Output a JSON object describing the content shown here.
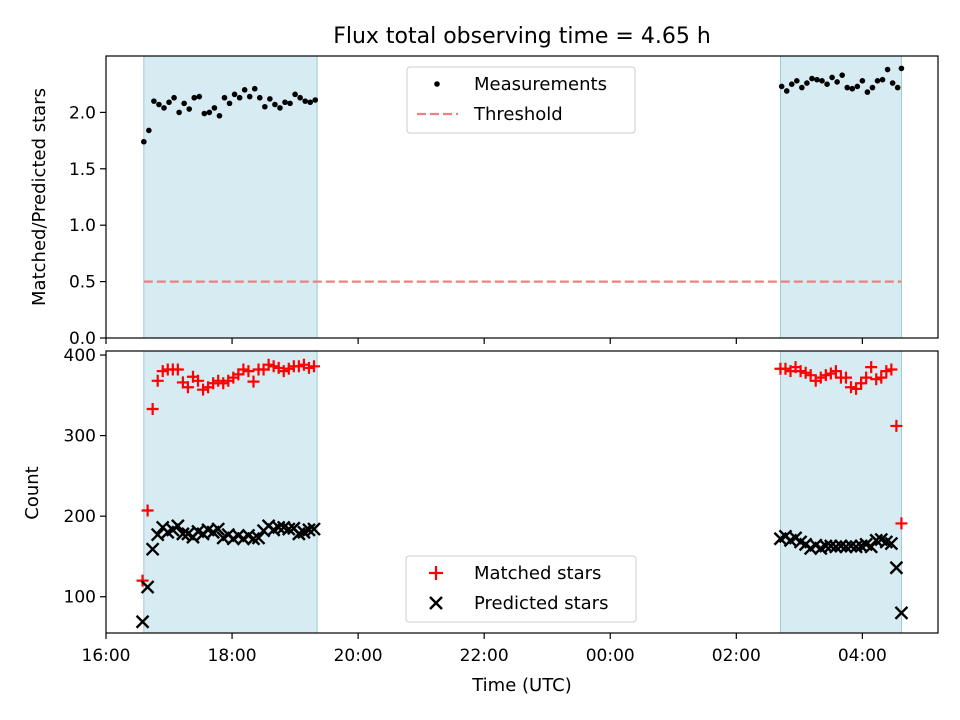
{
  "chart_data": [
    {
      "type": "scatter",
      "title": "Flux total observing time = 4.65 h",
      "xlabel": "",
      "ylabel": "Matched/Predicted stars",
      "xlim": [
        16.0,
        29.2
      ],
      "ylim": [
        0.0,
        2.5
      ],
      "yticks": [
        0.0,
        0.5,
        1.0,
        1.5,
        2.0
      ],
      "ytick_labels": [
        "0.0",
        "0.5",
        "1.0",
        "1.5",
        "2.0"
      ],
      "shaded_spans": [
        [
          16.6,
          19.35
        ],
        [
          26.7,
          28.62
        ]
      ],
      "threshold": 0.5,
      "threshold_x": [
        16.6,
        28.62
      ],
      "legend": {
        "placement": "upper center",
        "entries": [
          "Measurements",
          "Threshold"
        ]
      },
      "series": [
        {
          "name": "Measurements",
          "color": "#000000",
          "marker": "dot",
          "x": [
            16.6,
            16.68,
            16.76,
            16.84,
            16.92,
            17.0,
            17.08,
            17.16,
            17.24,
            17.32,
            17.4,
            17.48,
            17.56,
            17.64,
            17.72,
            17.8,
            17.88,
            17.96,
            18.04,
            18.12,
            18.2,
            18.28,
            18.36,
            18.44,
            18.52,
            18.6,
            18.68,
            18.76,
            18.84,
            18.92,
            19.0,
            19.08,
            19.16,
            19.24,
            19.32,
            26.72,
            26.8,
            26.88,
            26.96,
            27.04,
            27.12,
            27.2,
            27.28,
            27.36,
            27.44,
            27.52,
            27.6,
            27.68,
            27.76,
            27.84,
            27.92,
            28.0,
            28.08,
            28.16,
            28.24,
            28.32,
            28.4,
            28.48,
            28.56,
            28.62
          ],
          "y": [
            1.74,
            1.84,
            2.1,
            2.07,
            2.04,
            2.09,
            2.13,
            2.0,
            2.08,
            2.03,
            2.13,
            2.14,
            1.99,
            2.0,
            2.04,
            1.97,
            2.13,
            2.08,
            2.16,
            2.13,
            2.2,
            2.14,
            2.21,
            2.13,
            2.05,
            2.12,
            2.07,
            2.04,
            2.09,
            2.08,
            2.16,
            2.13,
            2.1,
            2.09,
            2.11,
            2.23,
            2.19,
            2.25,
            2.28,
            2.22,
            2.26,
            2.3,
            2.29,
            2.28,
            2.25,
            2.31,
            2.27,
            2.33,
            2.22,
            2.21,
            2.23,
            2.28,
            2.18,
            2.22,
            2.28,
            2.29,
            2.38,
            2.26,
            2.22,
            2.39
          ]
        },
        {
          "name": "Threshold",
          "color": "#f08080",
          "style": "dashed",
          "x": [
            16.6,
            28.62
          ],
          "y": [
            0.5,
            0.5
          ]
        }
      ]
    },
    {
      "type": "scatter",
      "title": "",
      "xlabel": "Time (UTC)",
      "ylabel": "Count",
      "xlim": [
        16.0,
        29.2
      ],
      "ylim": [
        55,
        405
      ],
      "yticks": [
        100,
        200,
        300,
        400
      ],
      "ytick_labels": [
        "100",
        "200",
        "300",
        "400"
      ],
      "xticks": [
        16,
        18,
        20,
        22,
        24,
        26,
        28
      ],
      "xtick_labels": [
        "16:00",
        "18:00",
        "20:00",
        "22:00",
        "00:00",
        "02:00",
        "04:00"
      ],
      "shaded_spans": [
        [
          16.6,
          19.35
        ],
        [
          26.7,
          28.62
        ]
      ],
      "legend": {
        "placement": "lower center",
        "entries": [
          "Matched stars",
          "Predicted stars"
        ]
      },
      "series": [
        {
          "name": "Matched stars",
          "color": "#ff0000",
          "marker": "plus",
          "x": [
            16.58,
            16.66,
            16.74,
            16.82,
            16.9,
            16.98,
            17.06,
            17.14,
            17.22,
            17.3,
            17.38,
            17.46,
            17.54,
            17.62,
            17.7,
            17.78,
            17.86,
            17.94,
            18.02,
            18.1,
            18.18,
            18.26,
            18.34,
            18.42,
            18.5,
            18.58,
            18.66,
            18.74,
            18.82,
            18.9,
            18.98,
            19.06,
            19.14,
            19.22,
            19.3,
            26.7,
            26.78,
            26.86,
            26.94,
            27.02,
            27.1,
            27.18,
            27.26,
            27.34,
            27.42,
            27.5,
            27.58,
            27.66,
            27.74,
            27.82,
            27.9,
            27.98,
            28.06,
            28.14,
            28.22,
            28.3,
            28.38,
            28.46,
            28.54,
            28.62
          ],
          "y": [
            120,
            207,
            333,
            368,
            380,
            382,
            382,
            382,
            366,
            360,
            373,
            368,
            357,
            360,
            365,
            368,
            365,
            368,
            372,
            376,
            382,
            380,
            367,
            382,
            382,
            388,
            386,
            384,
            380,
            383,
            386,
            386,
            388,
            384,
            386,
            383,
            383,
            380,
            385,
            380,
            378,
            375,
            368,
            372,
            375,
            377,
            380,
            372,
            372,
            360,
            358,
            365,
            372,
            385,
            370,
            372,
            380,
            382,
            312,
            191
          ]
        },
        {
          "name": "Predicted stars",
          "color": "#000000",
          "marker": "x",
          "x": [
            16.58,
            16.66,
            16.74,
            16.82,
            16.9,
            16.98,
            17.06,
            17.14,
            17.22,
            17.3,
            17.38,
            17.46,
            17.54,
            17.62,
            17.7,
            17.78,
            17.86,
            17.94,
            18.02,
            18.1,
            18.18,
            18.26,
            18.34,
            18.42,
            18.5,
            18.58,
            18.66,
            18.74,
            18.82,
            18.9,
            18.98,
            19.06,
            19.14,
            19.22,
            19.3,
            26.7,
            26.78,
            26.86,
            26.94,
            27.02,
            27.1,
            27.18,
            27.26,
            27.34,
            27.42,
            27.5,
            27.58,
            27.66,
            27.74,
            27.82,
            27.9,
            27.98,
            28.06,
            28.14,
            28.22,
            28.3,
            28.38,
            28.46,
            28.54,
            28.62
          ],
          "y": [
            69,
            112,
            159,
            177,
            186,
            180,
            183,
            188,
            178,
            178,
            174,
            181,
            178,
            183,
            180,
            184,
            173,
            177,
            172,
            176,
            172,
            176,
            172,
            173,
            182,
            188,
            183,
            186,
            186,
            184,
            185,
            178,
            180,
            183,
            184,
            172,
            175,
            170,
            173,
            168,
            165,
            160,
            164,
            160,
            163,
            163,
            162,
            163,
            162,
            163,
            162,
            163,
            165,
            162,
            170,
            171,
            168,
            166,
            136,
            80
          ]
        }
      ]
    }
  ]
}
